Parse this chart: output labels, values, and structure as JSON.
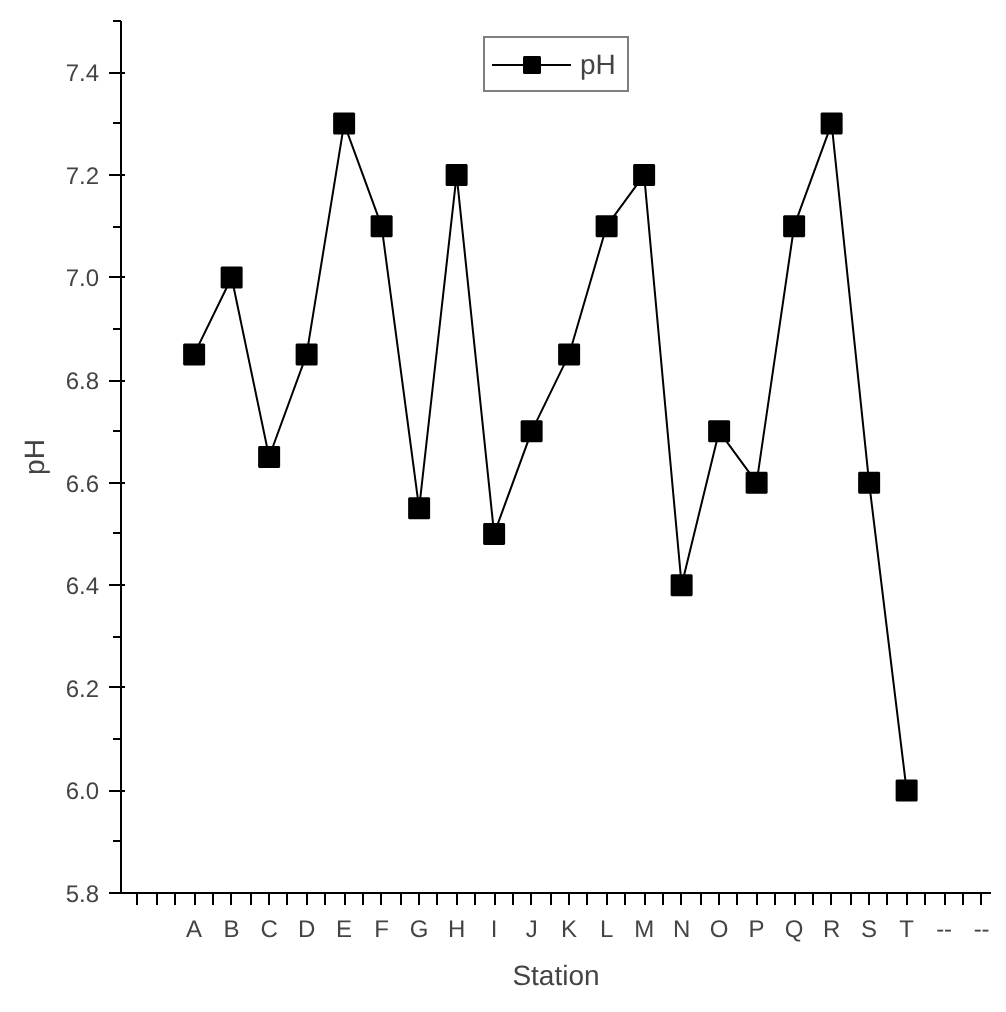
{
  "chart_data": {
    "type": "line",
    "xlabel": "Station",
    "ylabel": "pH",
    "categories": [
      null,
      "A",
      "B",
      "C",
      "D",
      "E",
      "F",
      "G",
      "H",
      "I",
      "J",
      "K",
      "L",
      "M",
      "N",
      "O",
      "P",
      "Q",
      "R",
      "S",
      "T",
      "--",
      "--"
    ],
    "series": [
      {
        "name": "pH",
        "color": "#000000",
        "values": [
          null,
          6.85,
          7.0,
          6.65,
          6.85,
          7.3,
          7.1,
          6.55,
          7.2,
          6.5,
          6.7,
          6.85,
          7.1,
          7.2,
          6.4,
          6.7,
          6.6,
          7.1,
          7.3,
          6.6,
          6.0,
          null,
          null
        ]
      }
    ],
    "ylim": [
      5.8,
      7.5
    ],
    "yticks": [
      5.8,
      {
        "value": 6,
        "label": "6.0"
      },
      6.2,
      6.4,
      6.6,
      6.8,
      {
        "value": 7,
        "label": "7.0"
      },
      7.2,
      7.4
    ],
    "marker": "square",
    "line_style": "solid",
    "legend": "top",
    "grid": false
  }
}
